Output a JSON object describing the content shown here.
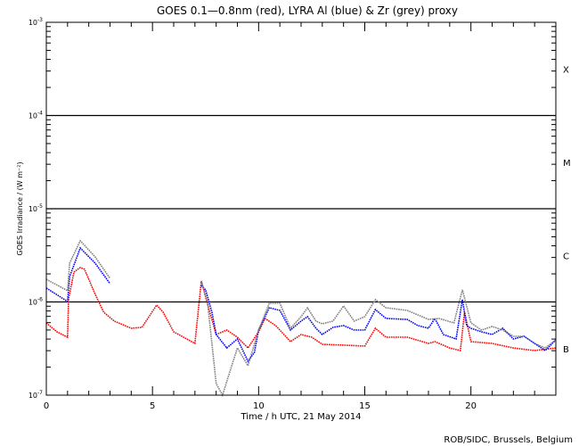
{
  "chart_data": {
    "type": "line",
    "title": "GOES 0.1—0.8nm (red), LYRA Al (blue) & Zr (grey) proxy",
    "xlabel": "Time / h UTC, 21 May 2014",
    "ylabel": "GOES Irradiance / (W m⁻²)",
    "credit": "ROB/SIDC, Brussels, Belgium",
    "xlim": [
      0,
      24
    ],
    "ylim": [
      1e-07,
      0.001
    ],
    "yscale": "log",
    "x_ticks": [
      "0",
      "5",
      "10",
      "15",
      "20"
    ],
    "x_tick_values": [
      0,
      5,
      10,
      15,
      20
    ],
    "y_ticks": [
      {
        "base": "10",
        "exp": "-7",
        "value": 1e-07
      },
      {
        "base": "10",
        "exp": "-6",
        "value": 1e-06
      },
      {
        "base": "10",
        "exp": "-5",
        "value": 1e-05
      },
      {
        "base": "10",
        "exp": "-4",
        "value": 0.0001
      },
      {
        "base": "10",
        "exp": "-3",
        "value": 0.001
      }
    ],
    "reference_lines": [
      1e-06,
      1e-05,
      0.0001
    ],
    "flare_classes": [
      {
        "label": "B",
        "value": 3.16e-07
      },
      {
        "label": "C",
        "value": 3.16e-06
      },
      {
        "label": "M",
        "value": 3.16e-05
      },
      {
        "label": "X",
        "value": 0.000316
      }
    ],
    "series": [
      {
        "name": "GOES 0.1-0.8nm",
        "color": "#ff0000",
        "segments": [
          [
            [
              0,
              5.96e-07
            ],
            [
              0.5,
              4.78e-07
            ],
            [
              1.0,
              4.19e-07
            ],
            [
              1.05,
              1.08e-06
            ],
            [
              1.3,
              2.09e-06
            ],
            [
              1.6,
              2.34e-06
            ],
            [
              1.8,
              2.24e-06
            ],
            [
              2.3,
              1.21e-06
            ],
            [
              2.7,
              7.76e-07
            ],
            [
              3.2,
              6.22e-07
            ],
            [
              4,
              5.22e-07
            ],
            [
              4.5,
              5.34e-07
            ],
            [
              5.2,
              9.26e-07
            ],
            [
              5.5,
              7.76e-07
            ],
            [
              6,
              4.78e-07
            ],
            [
              7,
              3.59e-07
            ],
            [
              7.3,
              1.68e-06
            ],
            [
              7.7,
              7.76e-07
            ],
            [
              8,
              4.47e-07
            ],
            [
              8.5,
              5e-07
            ],
            [
              9,
              4.19e-07
            ],
            [
              9.5,
              3.21e-07
            ],
            [
              10,
              4.78e-07
            ],
            [
              10.3,
              6.65e-07
            ],
            [
              10.8,
              5.58e-07
            ],
            [
              11,
              5e-07
            ],
            [
              11.5,
              3.75e-07
            ],
            [
              12,
              4.47e-07
            ],
            [
              12.5,
              4.19e-07
            ],
            [
              13,
              3.51e-07
            ],
            [
              14,
              3.44e-07
            ],
            [
              15,
              3.36e-07
            ],
            [
              15.5,
              5.22e-07
            ],
            [
              16,
              4.19e-07
            ],
            [
              17,
              4.19e-07
            ],
            [
              18,
              3.59e-07
            ],
            [
              18.3,
              3.75e-07
            ],
            [
              19,
              3.21e-07
            ],
            [
              19.5,
              3.01e-07
            ],
            [
              19.7,
              7.76e-07
            ],
            [
              20,
              3.75e-07
            ],
            [
              21,
              3.59e-07
            ],
            [
              22,
              3.21e-07
            ],
            [
              23,
              3.01e-07
            ],
            [
              24,
              3.21e-07
            ]
          ]
        ]
      },
      {
        "name": "LYRA Al proxy",
        "color": "#0000ff",
        "segments": [
          [
            [
              0,
              1.41e-06
            ],
            [
              1,
              1.01e-06
            ],
            [
              1.1,
              1.87e-06
            ],
            [
              1.6,
              3.79e-06
            ],
            [
              2.3,
              2.61e-06
            ],
            [
              3.0,
              1.57e-06
            ]
          ],
          [
            [
              7.3,
              1.5e-06
            ],
            [
              7.5,
              1.35e-06
            ],
            [
              7.8,
              7.76e-07
            ],
            [
              8,
              4.47e-07
            ],
            [
              8.5,
              3.21e-07
            ],
            [
              9,
              4.01e-07
            ],
            [
              9.5,
              2.31e-07
            ],
            [
              9.8,
              2.88e-07
            ],
            [
              10,
              5e-07
            ],
            [
              10.5,
              8.67e-07
            ],
            [
              11,
              8.11e-07
            ],
            [
              11.5,
              5e-07
            ],
            [
              12,
              6.22e-07
            ],
            [
              12.3,
              6.95e-07
            ],
            [
              12.7,
              5.22e-07
            ],
            [
              13,
              4.47e-07
            ],
            [
              13.5,
              5.34e-07
            ],
            [
              14,
              5.58e-07
            ],
            [
              14.5,
              5e-07
            ],
            [
              15,
              5e-07
            ],
            [
              15.5,
              8.29e-07
            ],
            [
              16,
              6.65e-07
            ],
            [
              17,
              6.5e-07
            ],
            [
              17.5,
              5.58e-07
            ],
            [
              18,
              5.22e-07
            ],
            [
              18.3,
              6.65e-07
            ],
            [
              18.7,
              4.47e-07
            ],
            [
              19.3,
              4.01e-07
            ],
            [
              19.6,
              1.06e-06
            ],
            [
              19.8,
              5.58e-07
            ],
            [
              20,
              5.22e-07
            ],
            [
              20.5,
              4.78e-07
            ],
            [
              21,
              4.47e-07
            ],
            [
              21.5,
              5.22e-07
            ],
            [
              22,
              4.01e-07
            ],
            [
              22.5,
              4.28e-07
            ],
            [
              23,
              3.59e-07
            ],
            [
              23.5,
              3.01e-07
            ],
            [
              24,
              3.92e-07
            ]
          ]
        ]
      },
      {
        "name": "LYRA Zr proxy",
        "color": "#808080",
        "segments": [
          [
            [
              0,
              1.75e-06
            ],
            [
              1,
              1.32e-06
            ],
            [
              1.1,
              2.61e-06
            ],
            [
              1.6,
              4.53e-06
            ],
            [
              2.3,
              3.04e-06
            ],
            [
              3.0,
              1.79e-06
            ]
          ],
          [
            [
              7.3,
              1.68e-06
            ],
            [
              7.6,
              9.68e-07
            ],
            [
              8,
              1.33e-07
            ],
            [
              8.3,
              9.6e-08
            ],
            [
              8.6,
              1.66e-07
            ],
            [
              9,
              3.21e-07
            ],
            [
              9.5,
              2.07e-07
            ],
            [
              10,
              5e-07
            ],
            [
              10.5,
              9.68e-07
            ],
            [
              11,
              9.68e-07
            ],
            [
              11.5,
              5.22e-07
            ],
            [
              12,
              6.95e-07
            ],
            [
              12.3,
              8.67e-07
            ],
            [
              12.7,
              6.22e-07
            ],
            [
              13,
              5.83e-07
            ],
            [
              13.5,
              6.22e-07
            ],
            [
              14,
              9.05e-07
            ],
            [
              14.5,
              6.22e-07
            ],
            [
              15,
              6.95e-07
            ],
            [
              15.5,
              1.06e-06
            ],
            [
              16,
              8.67e-07
            ],
            [
              17,
              8.11e-07
            ],
            [
              18,
              6.5e-07
            ],
            [
              18.5,
              6.65e-07
            ],
            [
              19.2,
              5.96e-07
            ],
            [
              19.6,
              1.35e-06
            ],
            [
              20,
              5.96e-07
            ],
            [
              20.5,
              5e-07
            ],
            [
              21,
              5.45e-07
            ],
            [
              21.5,
              5e-07
            ],
            [
              22,
              4.28e-07
            ],
            [
              22.5,
              4.28e-07
            ],
            [
              23,
              3.59e-07
            ],
            [
              23.5,
              3.21e-07
            ],
            [
              24,
              3.92e-07
            ]
          ]
        ]
      }
    ]
  }
}
